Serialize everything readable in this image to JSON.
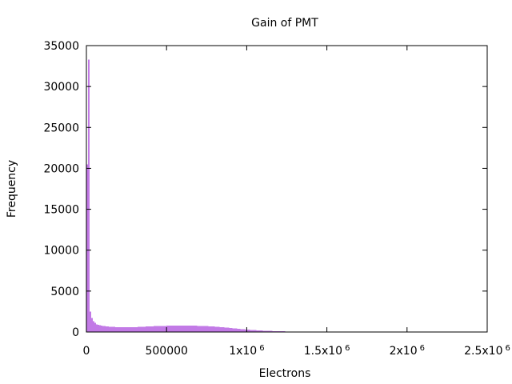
{
  "chart_data": {
    "type": "bar",
    "title": "Gain of PMT",
    "xlabel": "Electrons",
    "ylabel": "Frequency",
    "xlim": [
      0,
      2500000
    ],
    "ylim": [
      0,
      35000
    ],
    "grid": false,
    "legend": "none",
    "bar_color": "#c27ae6",
    "bin_width": 10000,
    "y_ticks": [
      {
        "value": 0,
        "label": "0"
      },
      {
        "value": 5000,
        "label": "5000"
      },
      {
        "value": 10000,
        "label": "10000"
      },
      {
        "value": 15000,
        "label": "15000"
      },
      {
        "value": 20000,
        "label": "20000"
      },
      {
        "value": 25000,
        "label": "25000"
      },
      {
        "value": 30000,
        "label": "30000"
      },
      {
        "value": 35000,
        "label": "35000"
      }
    ],
    "x_ticks": [
      {
        "value": 0,
        "label": "0",
        "exp": ""
      },
      {
        "value": 500000,
        "label": "500000",
        "exp": ""
      },
      {
        "value": 1000000,
        "label": "1x10",
        "exp": "6"
      },
      {
        "value": 1500000,
        "label": "1.5x10",
        "exp": "6"
      },
      {
        "value": 2000000,
        "label": "2x10",
        "exp": "6"
      },
      {
        "value": 2500000,
        "label": "2.5x10",
        "exp": "6"
      }
    ],
    "bins": [
      [
        0,
        20500
      ],
      [
        10000,
        33300
      ],
      [
        20000,
        2500
      ],
      [
        30000,
        1700
      ],
      [
        40000,
        1300
      ],
      [
        50000,
        1100
      ],
      [
        60000,
        950
      ],
      [
        70000,
        870
      ],
      [
        80000,
        820
      ],
      [
        90000,
        780
      ],
      [
        100000,
        740
      ],
      [
        110000,
        710
      ],
      [
        120000,
        690
      ],
      [
        130000,
        670
      ],
      [
        140000,
        650
      ],
      [
        150000,
        640
      ],
      [
        160000,
        630
      ],
      [
        170000,
        620
      ],
      [
        180000,
        610
      ],
      [
        190000,
        600
      ],
      [
        200000,
        595
      ],
      [
        210000,
        590
      ],
      [
        220000,
        585
      ],
      [
        230000,
        580
      ],
      [
        240000,
        578
      ],
      [
        250000,
        576
      ],
      [
        260000,
        575
      ],
      [
        270000,
        576
      ],
      [
        280000,
        580
      ],
      [
        290000,
        585
      ],
      [
        300000,
        595
      ],
      [
        310000,
        605
      ],
      [
        320000,
        615
      ],
      [
        330000,
        625
      ],
      [
        340000,
        635
      ],
      [
        350000,
        645
      ],
      [
        360000,
        655
      ],
      [
        370000,
        665
      ],
      [
        380000,
        675
      ],
      [
        390000,
        685
      ],
      [
        400000,
        695
      ],
      [
        410000,
        705
      ],
      [
        420000,
        712
      ],
      [
        430000,
        720
      ],
      [
        440000,
        727
      ],
      [
        450000,
        733
      ],
      [
        460000,
        739
      ],
      [
        470000,
        745
      ],
      [
        480000,
        750
      ],
      [
        490000,
        755
      ],
      [
        500000,
        760
      ],
      [
        510000,
        764
      ],
      [
        520000,
        768
      ],
      [
        530000,
        771
      ],
      [
        540000,
        774
      ],
      [
        550000,
        776
      ],
      [
        560000,
        778
      ],
      [
        570000,
        779
      ],
      [
        580000,
        780
      ],
      [
        590000,
        780
      ],
      [
        600000,
        780
      ],
      [
        610000,
        779
      ],
      [
        620000,
        778
      ],
      [
        630000,
        776
      ],
      [
        640000,
        774
      ],
      [
        650000,
        771
      ],
      [
        660000,
        768
      ],
      [
        670000,
        764
      ],
      [
        680000,
        760
      ],
      [
        690000,
        755
      ],
      [
        700000,
        750
      ],
      [
        710000,
        744
      ],
      [
        720000,
        737
      ],
      [
        730000,
        730
      ],
      [
        740000,
        722
      ],
      [
        750000,
        713
      ],
      [
        760000,
        703
      ],
      [
        770000,
        692
      ],
      [
        780000,
        680
      ],
      [
        790000,
        667
      ],
      [
        800000,
        653
      ],
      [
        810000,
        638
      ],
      [
        820000,
        622
      ],
      [
        830000,
        605
      ],
      [
        840000,
        588
      ],
      [
        850000,
        570
      ],
      [
        860000,
        552
      ],
      [
        870000,
        533
      ],
      [
        880000,
        514
      ],
      [
        890000,
        495
      ],
      [
        900000,
        475
      ],
      [
        910000,
        456
      ],
      [
        920000,
        437
      ],
      [
        930000,
        418
      ],
      [
        940000,
        399
      ],
      [
        950000,
        380
      ],
      [
        960000,
        362
      ],
      [
        970000,
        344
      ],
      [
        980000,
        327
      ],
      [
        990000,
        310
      ],
      [
        1000000,
        294
      ],
      [
        1010000,
        279
      ],
      [
        1020000,
        264
      ],
      [
        1030000,
        250
      ],
      [
        1040000,
        236
      ],
      [
        1050000,
        223
      ],
      [
        1060000,
        211
      ],
      [
        1070000,
        199
      ],
      [
        1080000,
        188
      ],
      [
        1090000,
        177
      ],
      [
        1100000,
        167
      ],
      [
        1110000,
        157
      ],
      [
        1120000,
        148
      ],
      [
        1130000,
        139
      ],
      [
        1140000,
        131
      ],
      [
        1150000,
        123
      ],
      [
        1160000,
        116
      ],
      [
        1170000,
        109
      ],
      [
        1180000,
        102
      ],
      [
        1190000,
        96
      ],
      [
        1200000,
        90
      ],
      [
        1210000,
        84
      ],
      [
        1220000,
        79
      ],
      [
        1230000,
        74
      ],
      [
        1240000,
        69
      ],
      [
        1250000,
        65
      ],
      [
        1260000,
        61
      ],
      [
        1270000,
        57
      ],
      [
        1280000,
        53
      ],
      [
        1290000,
        49
      ],
      [
        1300000,
        46
      ],
      [
        1310000,
        43
      ],
      [
        1320000,
        40
      ],
      [
        1330000,
        37
      ],
      [
        1340000,
        35
      ],
      [
        1350000,
        32
      ],
      [
        1360000,
        30
      ],
      [
        1370000,
        28
      ],
      [
        1380000,
        26
      ],
      [
        1390000,
        24
      ],
      [
        1400000,
        22
      ],
      [
        1410000,
        21
      ],
      [
        1420000,
        19
      ],
      [
        1430000,
        18
      ],
      [
        1440000,
        17
      ],
      [
        1450000,
        15
      ],
      [
        1460000,
        14
      ],
      [
        1470000,
        13
      ],
      [
        1480000,
        12
      ],
      [
        1490000,
        11
      ],
      [
        1500000,
        10
      ],
      [
        1510000,
        9
      ],
      [
        1520000,
        8
      ],
      [
        1530000,
        8
      ],
      [
        1540000,
        7
      ],
      [
        1550000,
        6
      ],
      [
        1560000,
        6
      ],
      [
        1570000,
        5
      ],
      [
        1580000,
        5
      ],
      [
        1590000,
        4
      ],
      [
        1600000,
        4
      ],
      [
        1610000,
        3
      ],
      [
        1620000,
        3
      ],
      [
        1630000,
        3
      ],
      [
        1640000,
        2
      ],
      [
        1650000,
        2
      ],
      [
        1660000,
        2
      ],
      [
        1670000,
        2
      ],
      [
        1680000,
        1
      ],
      [
        1690000,
        1
      ],
      [
        1700000,
        1
      ]
    ]
  }
}
